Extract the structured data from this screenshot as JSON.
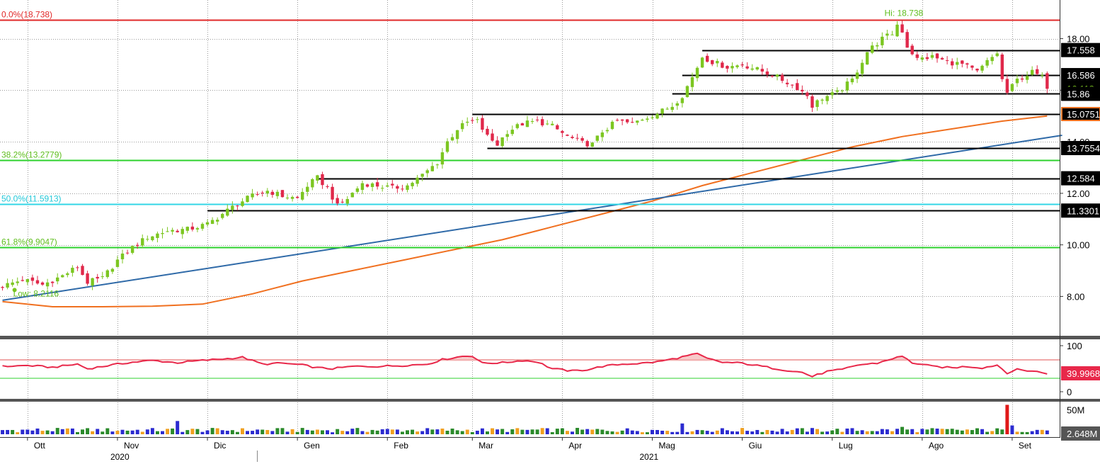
{
  "colors": {
    "background": "#ffffff",
    "grid": "#9a9a9a",
    "candle_up": "#7cc621",
    "candle_down": "#e0284a",
    "fib_0": "#e02828",
    "fib_382": "#2ed12e",
    "fib_50": "#33d6e6",
    "fib_618": "#2ed12e",
    "fib_label_0": "#e02828",
    "fib_label_green": "#5fbe1e",
    "fib_label_cyan": "#22c8d8",
    "trend": "#2f6aa8",
    "moving_average": "#f07020",
    "rsi": "#e8284a",
    "rsi_upper": "#e05050",
    "rsi_lower": "#2ed12e",
    "level_line": "#000000",
    "separator": "#555555",
    "vol_up": "#2a8a2a",
    "vol_down": "#2b2bd0",
    "vol_neutral": "#f0a020",
    "vol_spike": "#e01818"
  },
  "chart_data": [
    {
      "type": "candlestick",
      "panel": "price",
      "ylim": [
        6.5,
        19.5
      ],
      "yticks": [
        8,
        10,
        12,
        14,
        16,
        18
      ],
      "ytick_labels": [
        "8.00",
        "10.00",
        "12.00",
        "14.00",
        "16.00",
        "18.00"
      ],
      "grid": true,
      "x_months": [
        "Ott",
        "Nov",
        "Dic",
        "Gen",
        "Feb",
        "Mar",
        "Apr",
        "Mag",
        "Giu",
        "Lug",
        "Ago",
        "Set"
      ],
      "x_years": [
        "2020",
        "2021"
      ],
      "close_path": [
        [
          0,
          8.4
        ],
        [
          4,
          8.65
        ],
        [
          8,
          8.45
        ],
        [
          12,
          8.8
        ],
        [
          15,
          9.15
        ],
        [
          17,
          8.55
        ],
        [
          20,
          8.7
        ],
        [
          23,
          9.4
        ],
        [
          26,
          9.9
        ],
        [
          29,
          10.3
        ],
        [
          33,
          10.55
        ],
        [
          37,
          10.6
        ],
        [
          41,
          10.8
        ],
        [
          44,
          11.2
        ],
        [
          47,
          11.6
        ],
        [
          50,
          11.9
        ],
        [
          53,
          12.1
        ],
        [
          56,
          11.9
        ],
        [
          59,
          11.8
        ],
        [
          61,
          12.3
        ],
        [
          63,
          12.6
        ],
        [
          65,
          12.2
        ],
        [
          67,
          11.5
        ],
        [
          69,
          11.8
        ],
        [
          72,
          12.4
        ],
        [
          75,
          12.3
        ],
        [
          78,
          12.2
        ],
        [
          81,
          12.3
        ],
        [
          84,
          12.7
        ],
        [
          87,
          13.2
        ],
        [
          89,
          14.0
        ],
        [
          91,
          14.5
        ],
        [
          93,
          14.75
        ],
        [
          95,
          14.8
        ],
        [
          97,
          14.2
        ],
        [
          99,
          13.9
        ],
        [
          101,
          14.4
        ],
        [
          104,
          14.7
        ],
        [
          107,
          14.8
        ],
        [
          110,
          14.6
        ],
        [
          113,
          14.2
        ],
        [
          116,
          13.95
        ],
        [
          118,
          13.9
        ],
        [
          120,
          14.4
        ],
        [
          123,
          14.8
        ],
        [
          126,
          14.7
        ],
        [
          128,
          14.9
        ],
        [
          131,
          15.1
        ],
        [
          134,
          15.4
        ],
        [
          136,
          15.8
        ],
        [
          138,
          16.5
        ],
        [
          140,
          17.3
        ],
        [
          142,
          17.1
        ],
        [
          145,
          16.9
        ],
        [
          148,
          17.0
        ],
        [
          151,
          16.8
        ],
        [
          154,
          16.6
        ],
        [
          157,
          16.3
        ],
        [
          159,
          16.1
        ],
        [
          161,
          15.8
        ],
        [
          162,
          15.4
        ],
        [
          164,
          15.7
        ],
        [
          167,
          15.9
        ],
        [
          170,
          16.4
        ],
        [
          173,
          17.5
        ],
        [
          176,
          18.0
        ],
        [
          178,
          18.2
        ],
        [
          179,
          18.55
        ],
        [
          180,
          18.3
        ],
        [
          181,
          17.7
        ],
        [
          183,
          17.2
        ],
        [
          186,
          17.3
        ],
        [
          189,
          17.1
        ],
        [
          192,
          17.0
        ],
        [
          195,
          16.7
        ],
        [
          197,
          17.1
        ],
        [
          199,
          17.45
        ],
        [
          200,
          16.4
        ],
        [
          201,
          15.9
        ],
        [
          203,
          16.4
        ],
        [
          206,
          16.7
        ],
        [
          208,
          16.5
        ],
        [
          209,
          16.15
        ]
      ],
      "levels": [
        {
          "value": 17.558,
          "label": "17.558",
          "x_start": 140
        },
        {
          "value": 16.586,
          "label": "16.586",
          "x_start": 136
        },
        {
          "value": 15.86,
          "label": "15.86",
          "x_start": 134
        },
        {
          "value": 15.0751,
          "label": "15.0751",
          "x_start": 94
        },
        {
          "value": 13.7554,
          "label": "13.7554",
          "x_start": 97
        },
        {
          "value": 12.584,
          "label": "12.584",
          "x_start": 63
        },
        {
          "value": 11.3301,
          "label": "11.3301",
          "x_start": 41
        }
      ],
      "fibonacci": [
        {
          "label": "0.0%(18.738)",
          "value": 18.738
        },
        {
          "label": "38.2%(13.2779)",
          "value": 13.2779
        },
        {
          "label": "50.0%(11.5913)",
          "value": 11.5913
        },
        {
          "label": "61.8%(9.9047)",
          "value": 9.9047
        }
      ],
      "annotations": [
        {
          "label": "Hi: 18.738",
          "value": 18.738,
          "x": 179
        },
        {
          "label": "Low: 8.2116",
          "value": 8.2116,
          "x": 1
        }
      ],
      "last_price": {
        "label": "16.118",
        "value": 16.118
      },
      "moving_average": [
        [
          0,
          7.8
        ],
        [
          10,
          7.6
        ],
        [
          20,
          7.6
        ],
        [
          30,
          7.62
        ],
        [
          40,
          7.7
        ],
        [
          50,
          8.1
        ],
        [
          60,
          8.6
        ],
        [
          70,
          9.0
        ],
        [
          80,
          9.4
        ],
        [
          90,
          9.8
        ],
        [
          100,
          10.2
        ],
        [
          110,
          10.7
        ],
        [
          120,
          11.2
        ],
        [
          130,
          11.7
        ],
        [
          140,
          12.3
        ],
        [
          150,
          12.8
        ],
        [
          160,
          13.3
        ],
        [
          170,
          13.8
        ],
        [
          180,
          14.2
        ],
        [
          190,
          14.5
        ],
        [
          200,
          14.8
        ],
        [
          209,
          15.0
        ]
      ],
      "trendline": [
        [
          0,
          7.85
        ],
        [
          212,
          14.25
        ]
      ]
    },
    {
      "type": "line",
      "panel": "rsi",
      "ylim": [
        0,
        100
      ],
      "yticks": [
        0,
        100
      ],
      "ytick_labels": [
        "0",
        "100"
      ],
      "upper": 70,
      "lower": 30,
      "last_value": {
        "label": "39.9968",
        "value": 40.0
      },
      "values_path": [
        [
          0,
          55
        ],
        [
          5,
          57
        ],
        [
          10,
          53
        ],
        [
          15,
          60
        ],
        [
          17,
          50
        ],
        [
          20,
          55
        ],
        [
          25,
          63
        ],
        [
          30,
          68
        ],
        [
          35,
          63
        ],
        [
          40,
          68
        ],
        [
          45,
          72
        ],
        [
          48,
          75
        ],
        [
          52,
          60
        ],
        [
          56,
          62
        ],
        [
          60,
          58
        ],
        [
          63,
          52
        ],
        [
          66,
          50
        ],
        [
          70,
          55
        ],
        [
          75,
          55
        ],
        [
          80,
          57
        ],
        [
          85,
          60
        ],
        [
          88,
          70
        ],
        [
          92,
          77
        ],
        [
          94,
          78
        ],
        [
          96,
          62
        ],
        [
          100,
          63
        ],
        [
          104,
          68
        ],
        [
          107,
          65
        ],
        [
          110,
          50
        ],
        [
          114,
          45
        ],
        [
          117,
          48
        ],
        [
          120,
          55
        ],
        [
          124,
          60
        ],
        [
          128,
          62
        ],
        [
          131,
          65
        ],
        [
          134,
          71
        ],
        [
          137,
          78
        ],
        [
          139,
          82
        ],
        [
          141,
          72
        ],
        [
          144,
          64
        ],
        [
          148,
          62
        ],
        [
          152,
          55
        ],
        [
          156,
          48
        ],
        [
          160,
          42
        ],
        [
          162,
          33
        ],
        [
          165,
          44
        ],
        [
          168,
          48
        ],
        [
          171,
          58
        ],
        [
          175,
          62
        ],
        [
          178,
          72
        ],
        [
          180,
          77
        ],
        [
          182,
          63
        ],
        [
          186,
          55
        ],
        [
          190,
          52
        ],
        [
          193,
          55
        ],
        [
          196,
          52
        ],
        [
          199,
          58
        ],
        [
          201,
          41
        ],
        [
          203,
          48
        ],
        [
          206,
          45
        ],
        [
          209,
          40
        ]
      ]
    },
    {
      "type": "bar",
      "panel": "volume",
      "ylim": [
        0,
        65
      ],
      "yticks": [
        50
      ],
      "ytick_labels": [
        "50M"
      ],
      "last_value": {
        "label": "2.648M",
        "value": 2.648
      },
      "spikes": [
        [
          35,
          27
        ],
        [
          201,
          60
        ],
        [
          202,
          18
        ],
        [
          136,
          22
        ],
        [
          180,
          15
        ]
      ]
    }
  ]
}
